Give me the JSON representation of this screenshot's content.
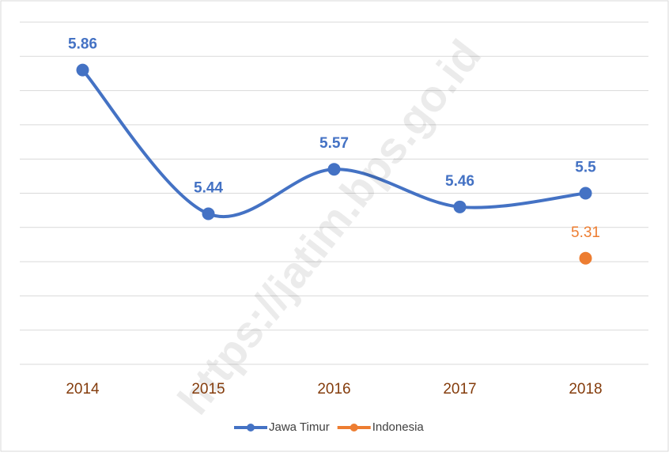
{
  "chart_data": {
    "type": "line",
    "categories": [
      "2014",
      "2015",
      "2016",
      "2017",
      "2018"
    ],
    "series": [
      {
        "name": "Jawa Timur",
        "color": "#4472c4",
        "values": [
          5.86,
          5.44,
          5.57,
          5.46,
          5.5
        ]
      },
      {
        "name": "Indonesia",
        "color": "#ed7d31",
        "values": [
          null,
          null,
          null,
          null,
          5.31
        ]
      }
    ],
    "ylim": [
      5.0,
      6.0
    ],
    "yticks": [
      5.0,
      5.1,
      5.2,
      5.3,
      5.4,
      5.5,
      5.6,
      5.7,
      5.8,
      5.9,
      6.0
    ],
    "grid": true,
    "legend": "bottom",
    "watermark": "https://jatim.bps.go.id"
  }
}
